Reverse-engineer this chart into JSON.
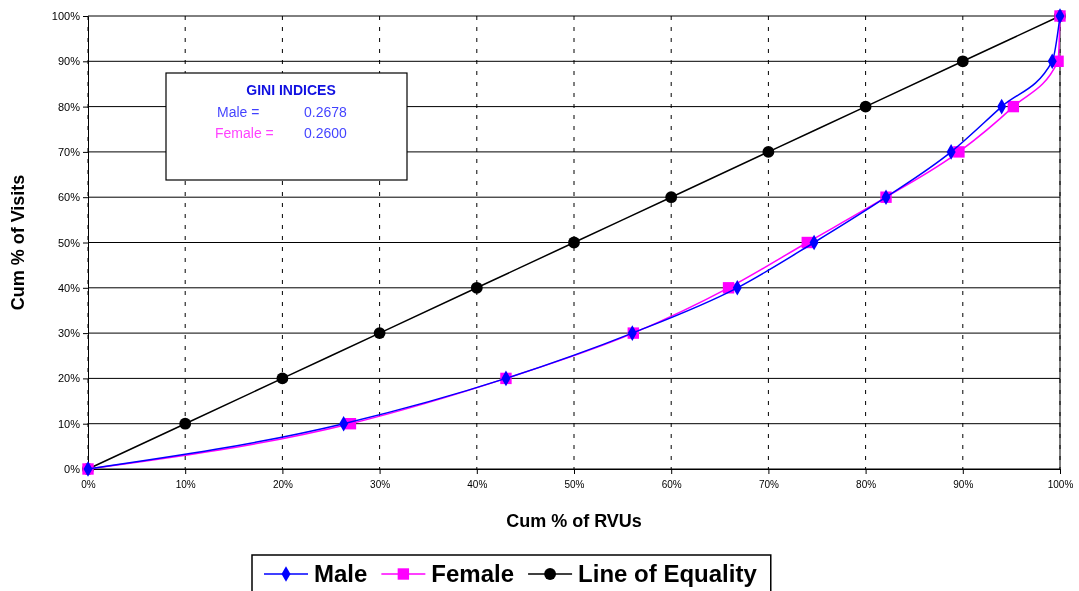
{
  "chart_data": {
    "type": "line",
    "xlabel": "Cum % of RVUs",
    "ylabel": "Cum % of Visits",
    "xlim": [
      0,
      100
    ],
    "ylim": [
      0,
      100
    ],
    "xticks": [
      {
        "value": 0,
        "label": "0%"
      },
      {
        "value": 10,
        "label": "10%"
      },
      {
        "value": 20,
        "label": "20%"
      },
      {
        "value": 30,
        "label": "30%"
      },
      {
        "value": 40,
        "label": "40%"
      },
      {
        "value": 50,
        "label": "50%"
      },
      {
        "value": 60,
        "label": "60%"
      },
      {
        "value": 70,
        "label": "70%"
      },
      {
        "value": 80,
        "label": "80%"
      },
      {
        "value": 90,
        "label": "90%"
      },
      {
        "value": 100,
        "label": "100%"
      }
    ],
    "yticks": [
      {
        "value": 0,
        "label": "0%"
      },
      {
        "value": 10,
        "label": "10%"
      },
      {
        "value": 20,
        "label": "20%"
      },
      {
        "value": 30,
        "label": "30%"
      },
      {
        "value": 40,
        "label": "40%"
      },
      {
        "value": 50,
        "label": "50%"
      },
      {
        "value": 60,
        "label": "60%"
      },
      {
        "value": 70,
        "label": "70%"
      },
      {
        "value": 80,
        "label": "80%"
      },
      {
        "value": 90,
        "label": "90%"
      },
      {
        "value": 100,
        "label": "100%"
      }
    ],
    "grid": true,
    "legend": "bottom",
    "series": [
      {
        "name": "Male",
        "color": "#0000ff",
        "marker": "diamond",
        "x": [
          0,
          26.3,
          43,
          56,
          66.8,
          74.7,
          82.1,
          88.8,
          94,
          99.2,
          100
        ],
        "values": [
          0,
          10,
          20,
          30,
          40,
          50,
          60,
          70,
          80,
          90,
          100
        ]
      },
      {
        "name": "Female",
        "color": "#ff00ff",
        "marker": "square",
        "x": [
          0,
          27,
          43,
          56.1,
          65.9,
          74,
          82.1,
          89.6,
          95.2,
          99.8,
          100
        ],
        "values": [
          0,
          10,
          20,
          30,
          40,
          50,
          60,
          70,
          80,
          90,
          100
        ]
      },
      {
        "name": "Line of Equality",
        "color": "#000000",
        "marker": "circle",
        "x": [
          0,
          10,
          20,
          30,
          40,
          50,
          60,
          70,
          80,
          90,
          100
        ],
        "values": [
          0,
          10,
          20,
          30,
          40,
          50,
          60,
          70,
          80,
          90,
          100
        ]
      }
    ],
    "annotations": [
      "GINI INDICES",
      "Male =",
      "0.2678",
      "Female =",
      "0.2600"
    ]
  }
}
